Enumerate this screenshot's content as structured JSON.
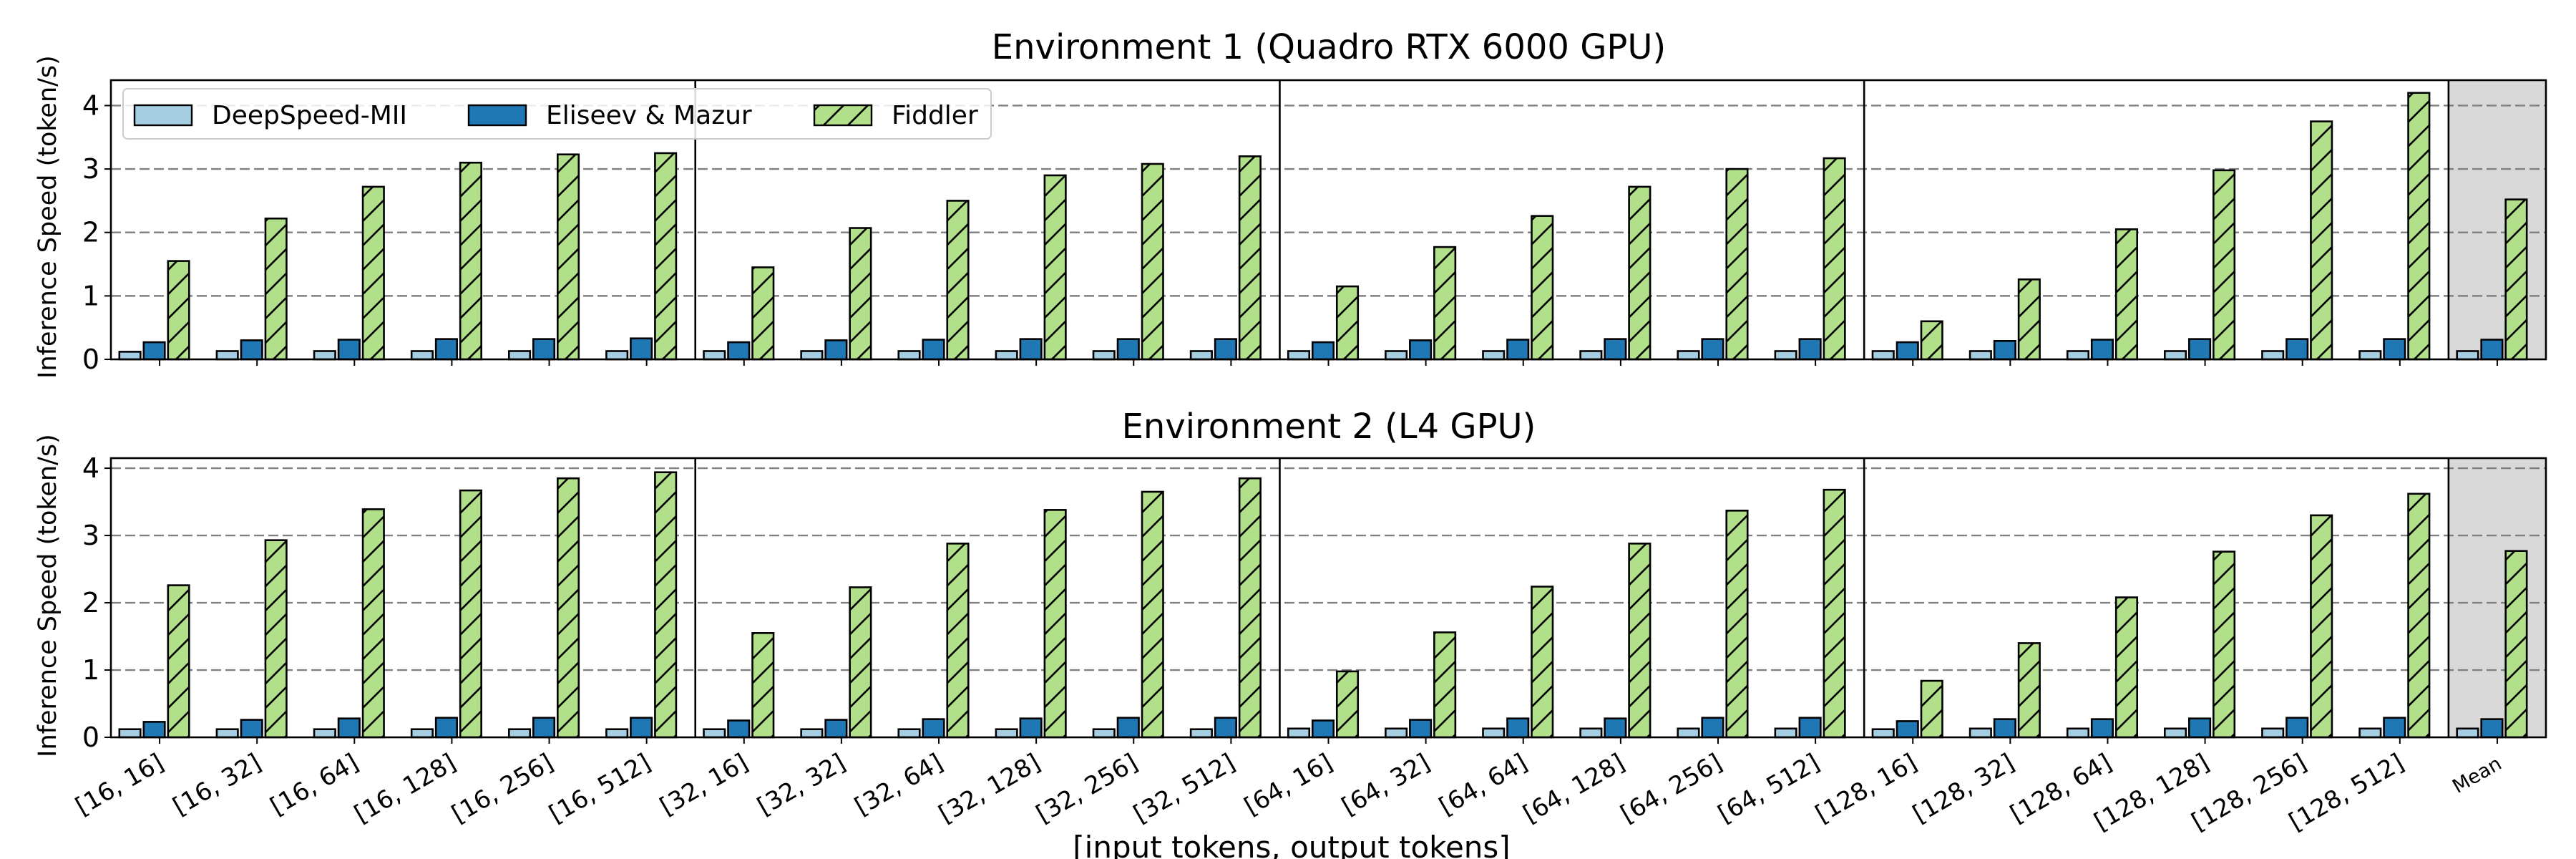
{
  "chart_data": {
    "type": "bar",
    "xlabel": "[input tokens, output tokens]",
    "ylabel": "Inference Speed (token/s)",
    "categories": [
      "[16, 16]",
      "[16, 32]",
      "[16, 64]",
      "[16, 128]",
      "[16, 256]",
      "[16, 512]",
      "[32, 16]",
      "[32, 32]",
      "[32, 64]",
      "[32, 128]",
      "[32, 256]",
      "[32, 512]",
      "[64, 16]",
      "[64, 32]",
      "[64, 64]",
      "[64, 128]",
      "[64, 256]",
      "[64, 512]",
      "[128, 16]",
      "[128, 32]",
      "[128, 64]",
      "[128, 128]",
      "[128, 256]",
      "[128, 512]",
      "Mean"
    ],
    "legend": [
      {
        "name": "DeepSpeed-MII",
        "color": "#a6cee3"
      },
      {
        "name": "Eliseev & Mazur",
        "color": "#1f78b4"
      },
      {
        "name": "Fiddler",
        "color": "#b2df8a"
      }
    ],
    "panels": [
      {
        "title": "Environment 1 (Quadro RTX 6000 GPU)",
        "ylim": [
          0,
          4.4
        ],
        "yticks": [
          0,
          1,
          2,
          3,
          4
        ],
        "series": [
          {
            "name": "DeepSpeed-MII",
            "values": [
              0.12,
              0.13,
              0.13,
              0.13,
              0.13,
              0.13,
              0.13,
              0.13,
              0.13,
              0.13,
              0.13,
              0.13,
              0.13,
              0.13,
              0.13,
              0.13,
              0.13,
              0.13,
              0.13,
              0.13,
              0.13,
              0.13,
              0.13,
              0.13,
              0.13
            ]
          },
          {
            "name": "Eliseev & Mazur",
            "values": [
              0.27,
              0.3,
              0.31,
              0.32,
              0.32,
              0.33,
              0.27,
              0.3,
              0.31,
              0.32,
              0.32,
              0.32,
              0.27,
              0.3,
              0.31,
              0.32,
              0.32,
              0.32,
              0.27,
              0.29,
              0.31,
              0.32,
              0.32,
              0.32,
              0.31
            ]
          },
          {
            "name": "Fiddler",
            "values": [
              1.55,
              2.22,
              2.72,
              3.1,
              3.23,
              3.25,
              1.45,
              2.07,
              2.5,
              2.9,
              3.08,
              3.2,
              1.15,
              1.77,
              2.26,
              2.72,
              3.0,
              3.17,
              0.6,
              1.26,
              2.05,
              2.98,
              3.75,
              4.2,
              2.52
            ]
          }
        ]
      },
      {
        "title": "Environment 2 (L4 GPU)",
        "ylim": [
          0,
          4.15
        ],
        "yticks": [
          0,
          1,
          2,
          3,
          4
        ],
        "series": [
          {
            "name": "DeepSpeed-MII",
            "values": [
              0.12,
              0.12,
              0.12,
              0.12,
              0.12,
              0.12,
              0.12,
              0.12,
              0.12,
              0.12,
              0.12,
              0.12,
              0.13,
              0.13,
              0.13,
              0.13,
              0.13,
              0.13,
              0.12,
              0.13,
              0.13,
              0.13,
              0.13,
              0.13,
              0.13
            ]
          },
          {
            "name": "Eliseev & Mazur",
            "values": [
              0.23,
              0.26,
              0.28,
              0.29,
              0.29,
              0.29,
              0.25,
              0.26,
              0.27,
              0.28,
              0.29,
              0.29,
              0.25,
              0.26,
              0.28,
              0.28,
              0.29,
              0.29,
              0.24,
              0.27,
              0.27,
              0.28,
              0.29,
              0.29,
              0.27
            ]
          },
          {
            "name": "Fiddler",
            "values": [
              2.26,
              2.93,
              3.39,
              3.67,
              3.85,
              3.94,
              1.55,
              2.23,
              2.88,
              3.38,
              3.65,
              3.85,
              0.98,
              1.56,
              2.24,
              2.88,
              3.37,
              3.68,
              0.84,
              1.4,
              2.08,
              2.76,
              3.3,
              3.62,
              2.77
            ]
          }
        ]
      }
    ]
  }
}
